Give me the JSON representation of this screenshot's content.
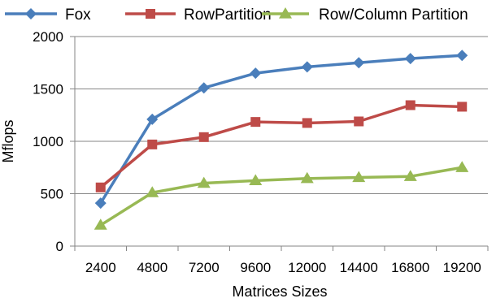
{
  "chart_data": {
    "type": "line",
    "title": "",
    "xlabel": "Matrices Sizes",
    "ylabel": "Mflops",
    "categories": [
      "2400",
      "4800",
      "7200",
      "9600",
      "12000",
      "14400",
      "16800",
      "19200"
    ],
    "ylim": [
      0,
      2000
    ],
    "yticks": [
      0,
      500,
      1000,
      1500,
      2000
    ],
    "grid": true,
    "legend_position": "top",
    "series": [
      {
        "name": "Fox",
        "color": "#4a7ebb",
        "marker": "diamond",
        "values": [
          410,
          1210,
          1510,
          1650,
          1710,
          1750,
          1790,
          1820
        ]
      },
      {
        "name": "RowPartition",
        "color": "#be4b48",
        "marker": "square",
        "values": [
          560,
          970,
          1040,
          1185,
          1175,
          1190,
          1345,
          1330
        ]
      },
      {
        "name": "Row/Column Partition",
        "color": "#98b954",
        "marker": "triangle",
        "values": [
          200,
          510,
          600,
          625,
          645,
          655,
          665,
          750
        ]
      }
    ]
  }
}
